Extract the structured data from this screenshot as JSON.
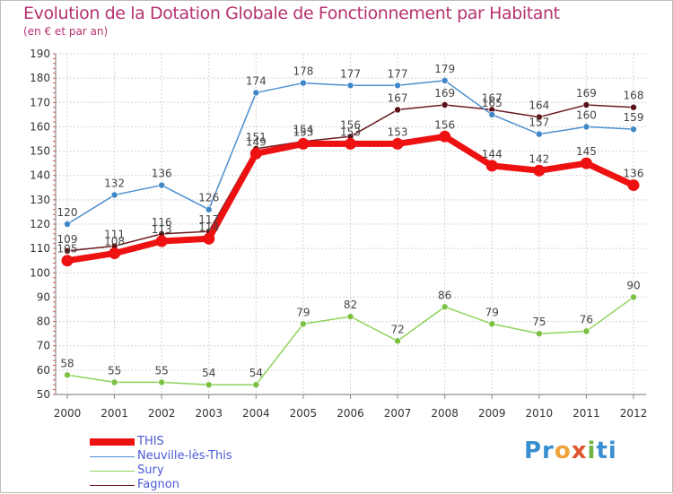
{
  "title": "Evolution de la Dotation Globale de Fonctionnement par Habitant",
  "subtitle": "(en € et par an)",
  "brand": {
    "p1": "Pr",
    "p2": "o",
    "p3": "x",
    "p4": "i",
    "p5": "ti"
  },
  "colors": {
    "THIS": "#ee1111",
    "Neuville": "#4d8fcf",
    "Sury": "#8fd35a",
    "Fagnon": "#6b1a1f"
  },
  "chart_data": {
    "type": "line",
    "title": "Evolution de la Dotation Globale de Fonctionnement par Habitant",
    "subtitle": "(en € et par an)",
    "x": [
      "2000",
      "2001",
      "2002",
      "2003",
      "2004",
      "2005",
      "2006",
      "2007",
      "2008",
      "2009",
      "2010",
      "2011",
      "2012"
    ],
    "ylim": [
      50,
      190
    ],
    "yticks": [
      50,
      60,
      70,
      80,
      90,
      100,
      110,
      120,
      130,
      140,
      150,
      160,
      170,
      180,
      190
    ],
    "grid": true,
    "legend_position": "bottom-left",
    "series": [
      {
        "name": "Sury",
        "key": "Sury",
        "values": [
          58,
          55,
          55,
          54,
          54,
          79,
          82,
          72,
          86,
          79,
          75,
          76,
          90
        ]
      },
      {
        "name": "Fagnon",
        "key": "Fagnon",
        "values": [
          109,
          111,
          116,
          117,
          151,
          154,
          156,
          167,
          169,
          167,
          164,
          169,
          168
        ]
      },
      {
        "name": "Neuville-lès-This",
        "key": "Neuville",
        "values": [
          120,
          132,
          136,
          126,
          174,
          178,
          177,
          177,
          179,
          165,
          157,
          160,
          159
        ]
      },
      {
        "name": "THIS",
        "key": "THIS",
        "values": [
          105,
          108,
          113,
          114,
          149,
          153,
          153,
          153,
          156,
          144,
          142,
          145,
          136
        ]
      }
    ],
    "legend_order": [
      "THIS",
      "Neuville-lès-This",
      "Sury",
      "Fagnon"
    ]
  }
}
